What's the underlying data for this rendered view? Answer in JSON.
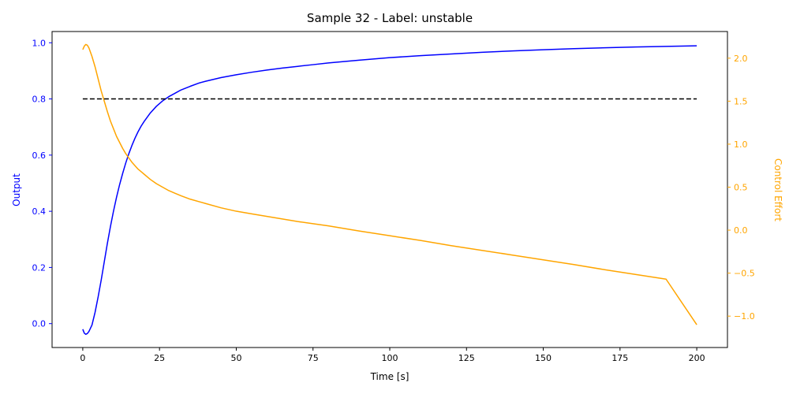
{
  "chart_data": {
    "type": "line",
    "title": "Sample 32 - Label: unstable",
    "xlabel": "Time [s]",
    "ylabel_left": "Output",
    "ylabel_right": "Control Effort",
    "xlim": [
      -10,
      210
    ],
    "ylim_left": [
      -0.085,
      1.04
    ],
    "ylim_right": [
      -1.365,
      2.31
    ],
    "x_ticks": [
      0,
      25,
      50,
      75,
      100,
      125,
      150,
      175,
      200
    ],
    "x_tick_labels": [
      "0",
      "25",
      "50",
      "75",
      "100",
      "125",
      "150",
      "175",
      "200"
    ],
    "y_left_ticks": [
      0.0,
      0.2,
      0.4,
      0.6,
      0.8,
      1.0
    ],
    "y_left_tick_labels": [
      "0.0",
      "0.2",
      "0.4",
      "0.6",
      "0.8",
      "1.0"
    ],
    "y_right_ticks": [
      -1.0,
      -0.5,
      0.0,
      0.5,
      1.0,
      1.5,
      2.0
    ],
    "y_right_tick_labels": [
      "−1.0",
      "−0.5",
      "0.0",
      "0.5",
      "1.0",
      "1.5",
      "2.0"
    ],
    "grid": false,
    "colors": {
      "output": "#0000ff",
      "control": "#ffa500",
      "reference": "#000000",
      "left_axis": "#0000ff",
      "right_axis": "#ffa500"
    },
    "series": [
      {
        "axis": "left",
        "color": "#0000ff",
        "style": "solid",
        "x": [
          0,
          0.5,
          1,
          1.5,
          2,
          3,
          4,
          5,
          6,
          7,
          8,
          9,
          10,
          11,
          12,
          13,
          14,
          15,
          16,
          17,
          18,
          19,
          20,
          22,
          24,
          26,
          28,
          30,
          32,
          35,
          38,
          40,
          45,
          50,
          55,
          60,
          65,
          70,
          75,
          80,
          90,
          100,
          110,
          120,
          130,
          140,
          150,
          160,
          170,
          180,
          190,
          200
        ],
        "y": [
          -0.02,
          -0.034,
          -0.038,
          -0.035,
          -0.028,
          -0.005,
          0.04,
          0.095,
          0.155,
          0.22,
          0.285,
          0.345,
          0.4,
          0.45,
          0.495,
          0.535,
          0.572,
          0.605,
          0.634,
          0.66,
          0.683,
          0.703,
          0.72,
          0.75,
          0.774,
          0.793,
          0.808,
          0.82,
          0.832,
          0.845,
          0.857,
          0.863,
          0.876,
          0.886,
          0.895,
          0.903,
          0.91,
          0.916,
          0.922,
          0.928,
          0.938,
          0.947,
          0.954,
          0.96,
          0.966,
          0.971,
          0.975,
          0.979,
          0.982,
          0.985,
          0.987,
          0.989
        ]
      },
      {
        "axis": "right",
        "color": "#ffa500",
        "style": "solid",
        "x": [
          0,
          0.5,
          1,
          1.5,
          2,
          3,
          4,
          5,
          6,
          7,
          8,
          9,
          10,
          11,
          12,
          13,
          14,
          15,
          16,
          17,
          18,
          19,
          20,
          22,
          24,
          26,
          28,
          30,
          32,
          35,
          38,
          40,
          45,
          50,
          55,
          60,
          65,
          70,
          75,
          80,
          90,
          100,
          110,
          120,
          130,
          140,
          150,
          160,
          170,
          180,
          190,
          200
        ],
        "y": [
          2.1,
          2.14,
          2.16,
          2.15,
          2.12,
          2.02,
          1.9,
          1.76,
          1.62,
          1.5,
          1.38,
          1.27,
          1.18,
          1.09,
          1.02,
          0.95,
          0.89,
          0.84,
          0.79,
          0.75,
          0.71,
          0.68,
          0.65,
          0.59,
          0.54,
          0.5,
          0.46,
          0.43,
          0.4,
          0.36,
          0.33,
          0.31,
          0.26,
          0.22,
          0.19,
          0.16,
          0.13,
          0.1,
          0.075,
          0.05,
          -0.01,
          -0.065,
          -0.12,
          -0.18,
          -0.235,
          -0.29,
          -0.345,
          -0.4,
          -0.46,
          -0.515,
          -0.57,
          -1.1
        ]
      },
      {
        "axis": "left",
        "color": "#000000",
        "style": "dashed",
        "x": [
          0,
          200
        ],
        "y": [
          0.8,
          0.8
        ]
      }
    ]
  }
}
